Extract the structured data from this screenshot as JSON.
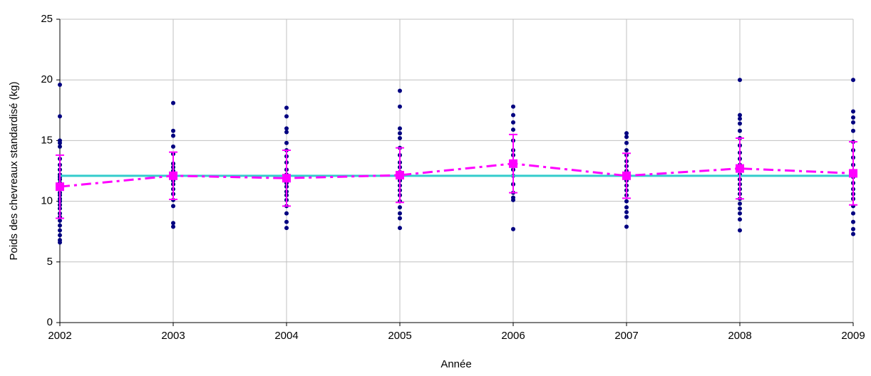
{
  "chart_data": {
    "type": "scatter",
    "xlabel": "Année",
    "ylabel": "Poids des chevreaux standardisé (kg)",
    "xlim": [
      2002,
      2009
    ],
    "xticks": [
      2002,
      2003,
      2004,
      2005,
      2006,
      2007,
      2008,
      2009
    ],
    "ylim": [
      0,
      25
    ],
    "yticks": [
      0,
      5,
      10,
      15,
      20,
      25
    ],
    "grid": true,
    "point_color": "#000080",
    "observations": [
      {
        "x": 2002,
        "values": [
          19.6,
          17.0,
          15.0,
          14.8,
          14.5,
          13.5,
          13.0,
          12.6,
          12.2,
          12.0,
          11.8,
          11.5,
          11.2,
          11.0,
          10.7,
          10.5,
          10.2,
          10.0,
          9.7,
          9.4,
          9.0,
          8.7,
          8.4,
          8.0,
          7.6,
          7.2,
          6.8,
          6.6
        ]
      },
      {
        "x": 2003,
        "values": [
          18.1,
          15.8,
          15.4,
          14.5,
          13.9,
          13.1,
          12.8,
          12.5,
          12.2,
          12.0,
          11.7,
          11.4,
          11.0,
          10.6,
          10.1,
          9.6,
          8.2,
          7.9
        ]
      },
      {
        "x": 2004,
        "values": [
          17.7,
          17.0,
          16.0,
          15.7,
          14.8,
          14.2,
          13.7,
          13.2,
          12.6,
          12.2,
          11.9,
          11.5,
          11.2,
          10.8,
          10.5,
          10.1,
          9.6,
          9.0,
          8.3,
          7.8
        ]
      },
      {
        "x": 2005,
        "values": [
          19.1,
          17.8,
          16.0,
          15.6,
          15.2,
          14.4,
          13.8,
          13.2,
          12.8,
          12.4,
          12.1,
          11.7,
          11.3,
          10.9,
          10.5,
          10.0,
          9.5,
          9.0,
          8.6,
          7.8
        ]
      },
      {
        "x": 2006,
        "values": [
          17.8,
          17.1,
          16.5,
          15.9,
          15.0,
          14.2,
          13.8,
          13.0,
          12.6,
          12.1,
          11.4,
          10.7,
          10.3,
          10.1,
          7.7
        ]
      },
      {
        "x": 2007,
        "values": [
          15.6,
          15.3,
          14.8,
          14.2,
          13.8,
          13.3,
          12.9,
          12.5,
          12.1,
          11.7,
          11.3,
          10.9,
          10.5,
          10.0,
          9.5,
          9.1,
          8.7,
          7.9
        ]
      },
      {
        "x": 2008,
        "values": [
          20.0,
          17.1,
          16.8,
          16.4,
          15.8,
          15.2,
          14.6,
          14.0,
          13.5,
          13.0,
          12.6,
          12.2,
          11.8,
          11.4,
          11.0,
          10.6,
          10.2,
          9.8,
          9.4,
          9.0,
          8.5,
          7.6
        ]
      },
      {
        "x": 2009,
        "values": [
          20.0,
          17.4,
          16.9,
          16.5,
          15.8,
          14.9,
          14.2,
          13.6,
          13.0,
          12.5,
          12.0,
          11.5,
          11.0,
          10.6,
          10.2,
          9.6,
          9.0,
          8.3,
          7.7,
          7.3
        ]
      }
    ],
    "means": {
      "color": "#ff00ff",
      "x": [
        2002,
        2003,
        2004,
        2005,
        2006,
        2007,
        2008,
        2009
      ],
      "values": [
        11.2,
        12.1,
        11.9,
        12.15,
        13.1,
        12.1,
        12.7,
        12.3
      ],
      "errors": [
        2.6,
        1.95,
        2.3,
        2.25,
        2.4,
        1.85,
        2.5,
        2.6
      ]
    },
    "reference": {
      "value": 12.1,
      "color": "#33cccc"
    }
  }
}
